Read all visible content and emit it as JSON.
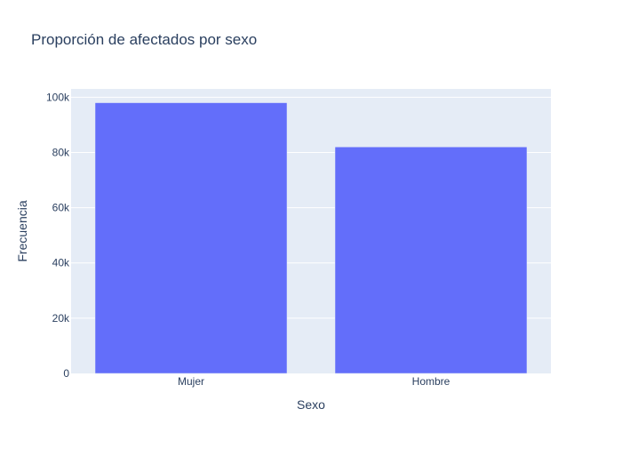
{
  "chart_data": {
    "type": "bar",
    "title": "Proporción de afectados por sexo",
    "xlabel": "Sexo",
    "ylabel": "Frecuencia",
    "categories": [
      "Mujer",
      "Hombre"
    ],
    "values": [
      98000,
      82000
    ],
    "ylim": [
      0,
      103000
    ],
    "yticks": [
      0,
      20000,
      40000,
      60000,
      80000,
      100000
    ],
    "ytick_labels": [
      "0",
      "20k",
      "40k",
      "60k",
      "80k",
      "100k"
    ],
    "grid": true,
    "legend": "none",
    "colors": {
      "bar": "#636efa",
      "plot_bg": "#e5ecf6",
      "grid": "#ffffff",
      "text": "#2a3f5f"
    }
  }
}
